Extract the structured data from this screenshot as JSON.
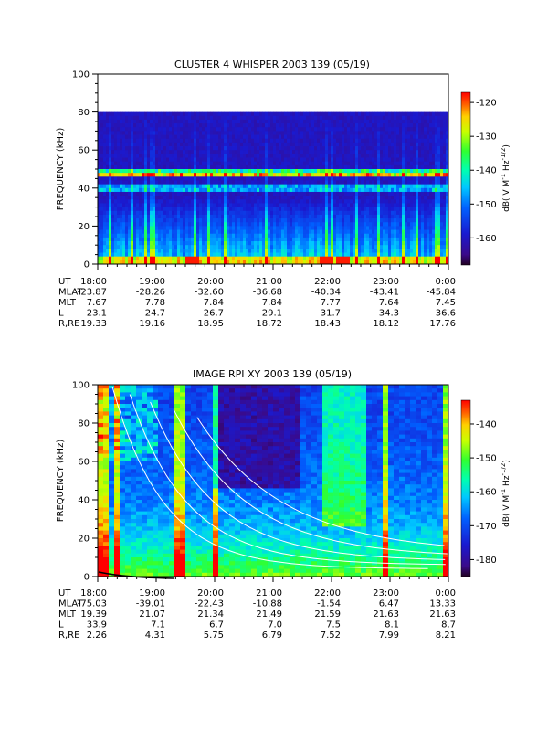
{
  "chart_data": [
    {
      "type": "heatmap",
      "title": "CLUSTER 4 WHISPER 2003 139 (05/19)",
      "ylabel": "FREQUENCY (kHz)",
      "ylim": [
        0,
        100
      ],
      "yticks": [
        "0",
        "20",
        "40",
        "60",
        "80",
        "100"
      ],
      "data_ymax": 80,
      "x_ticklabels": [
        "18:00",
        "19:00",
        "20:00",
        "21:00",
        "22:00",
        "23:00",
        "0:00"
      ],
      "colorbar": {
        "label": "dB( V M^-1 Hz^-1/2 )",
        "range": [
          -168,
          -117
        ],
        "ticks": [
          "-120",
          "-130",
          "-140",
          "-150",
          "-160"
        ],
        "tick_values": [
          -120,
          -130,
          -140,
          -150,
          -160
        ]
      },
      "features": {
        "bands_khz": [
          {
            "freq": 48,
            "strength": 0.55
          },
          {
            "freq": 47,
            "strength": 0.4
          },
          {
            "freq": 40,
            "strength": 0.35
          }
        ],
        "hotspots_hours": [
          1.6,
          3.9,
          4.2
        ]
      },
      "ephemeris_labels": [
        "UT",
        "MLAT",
        "MLT",
        "L",
        "R,RE"
      ],
      "ephemeris": [
        [
          "18:00",
          "19:00",
          "20:00",
          "21:00",
          "22:00",
          "23:00",
          "0:00"
        ],
        [
          "-23.87",
          "-28.26",
          "-32.60",
          "-36.68",
          "-40.34",
          "-43.41",
          "-45.84"
        ],
        [
          "7.67",
          "7.78",
          "7.84",
          "7.84",
          "7.77",
          "7.64",
          "7.45"
        ],
        [
          "23.1",
          "24.7",
          "26.7",
          "29.1",
          "31.7",
          "34.3",
          "36.6"
        ],
        [
          "19.33",
          "19.16",
          "18.95",
          "18.72",
          "18.43",
          "18.12",
          "17.76"
        ]
      ]
    },
    {
      "type": "heatmap",
      "title": "IMAGE RPI XY 2003 139 (05/19)",
      "ylabel": "FREQUENCY (kHz)",
      "ylim": [
        0,
        100
      ],
      "yticks": [
        "0",
        "20",
        "40",
        "60",
        "80",
        "100"
      ],
      "data_ymax": 100,
      "x_ticklabels": [
        "18:00",
        "19:00",
        "20:00",
        "21:00",
        "22:00",
        "23:00",
        "0:00"
      ],
      "colorbar": {
        "label": "dB( V M^-1 Hz^-1/2 )",
        "range": [
          -185,
          -133
        ],
        "ticks": [
          "-140",
          "-150",
          "-160",
          "-170",
          "-180"
        ],
        "tick_values": [
          -140,
          -150,
          -160,
          -170,
          -180
        ]
      },
      "features": {
        "hot_columns_hours": [
          0.1,
          0.35,
          1.4,
          2.0,
          4.9,
          5.95
        ],
        "curve_color": "#ffffff"
      },
      "ephemeris_labels": [
        "UT",
        "MLAT",
        "MLT",
        "L",
        "R,RE"
      ],
      "ephemeris": [
        [
          "18:00",
          "19:00",
          "20:00",
          "21:00",
          "22:00",
          "23:00",
          "0:00"
        ],
        [
          "-75.03",
          "-39.01",
          "-22.43",
          "-10.88",
          "-1.54",
          "6.47",
          "13.33"
        ],
        [
          "19.39",
          "21.07",
          "21.34",
          "21.49",
          "21.59",
          "21.63",
          "21.63"
        ],
        [
          "33.9",
          "7.1",
          "6.7",
          "7.0",
          "7.5",
          "8.1",
          "8.7"
        ],
        [
          "2.26",
          "4.31",
          "5.75",
          "6.79",
          "7.52",
          "7.99",
          "8.21"
        ]
      ]
    }
  ]
}
